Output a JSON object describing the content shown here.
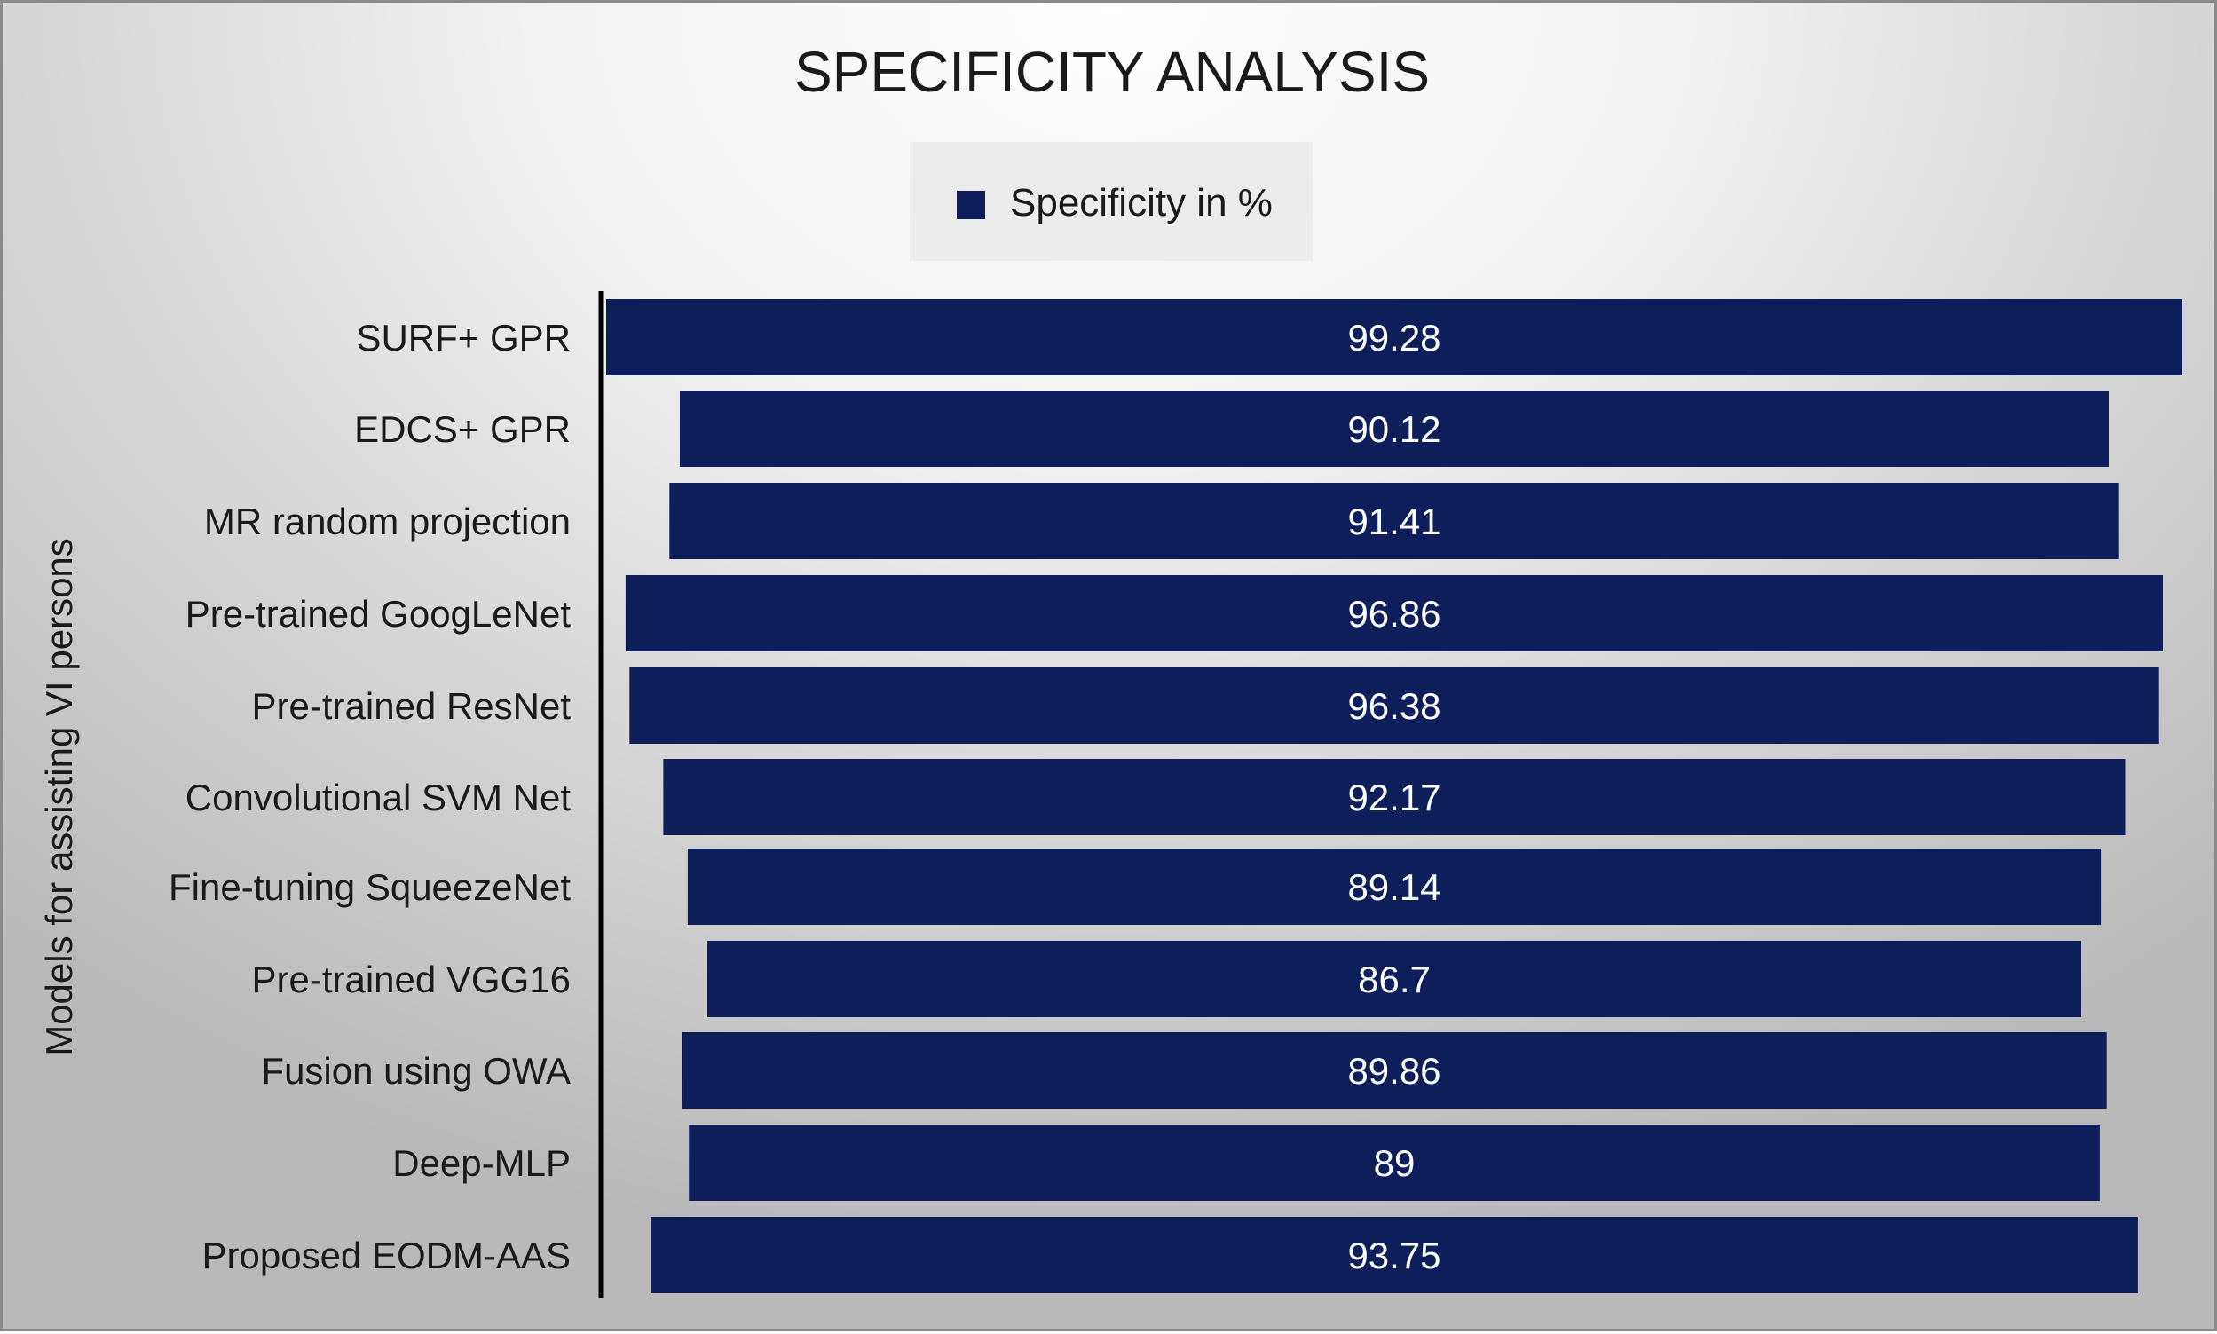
{
  "chart_data": {
    "type": "bar",
    "orientation": "horizontal",
    "title": "SPECIFICITY ANALYSIS",
    "ylabel": "Models for assisting VI persons",
    "xlabel": "",
    "legend": {
      "position": "top-center",
      "entries": [
        "Specificity in %"
      ]
    },
    "categories": [
      "SURF+ GPR",
      "EDCS+ GPR",
      "MR random projection",
      "Pre-trained GoogLeNet",
      "Pre-trained ResNet",
      "Convolutional SVM Net",
      "Fine-tuning SqueezeNet",
      "Pre-trained VGG16",
      "Fusion using OWA",
      "Deep-MLP",
      "Proposed EODM-AAS"
    ],
    "series": [
      {
        "name": "Specificity in %",
        "values": [
          99.28,
          90.12,
          91.41,
          96.86,
          96.38,
          92.17,
          89.14,
          86.7,
          89.86,
          89,
          93.75
        ],
        "value_labels": [
          "99.28",
          "90.12",
          "91.41",
          "96.86",
          "96.38",
          "92.17",
          "89.14",
          "86.7",
          "89.86",
          "89",
          "93.75"
        ]
      }
    ],
    "grid": false,
    "data_labels": "inside-center",
    "colors": {
      "bar": "#0d1e5a",
      "label": "#ffffff",
      "text": "#1a1a1a",
      "axis": "#000000"
    }
  }
}
